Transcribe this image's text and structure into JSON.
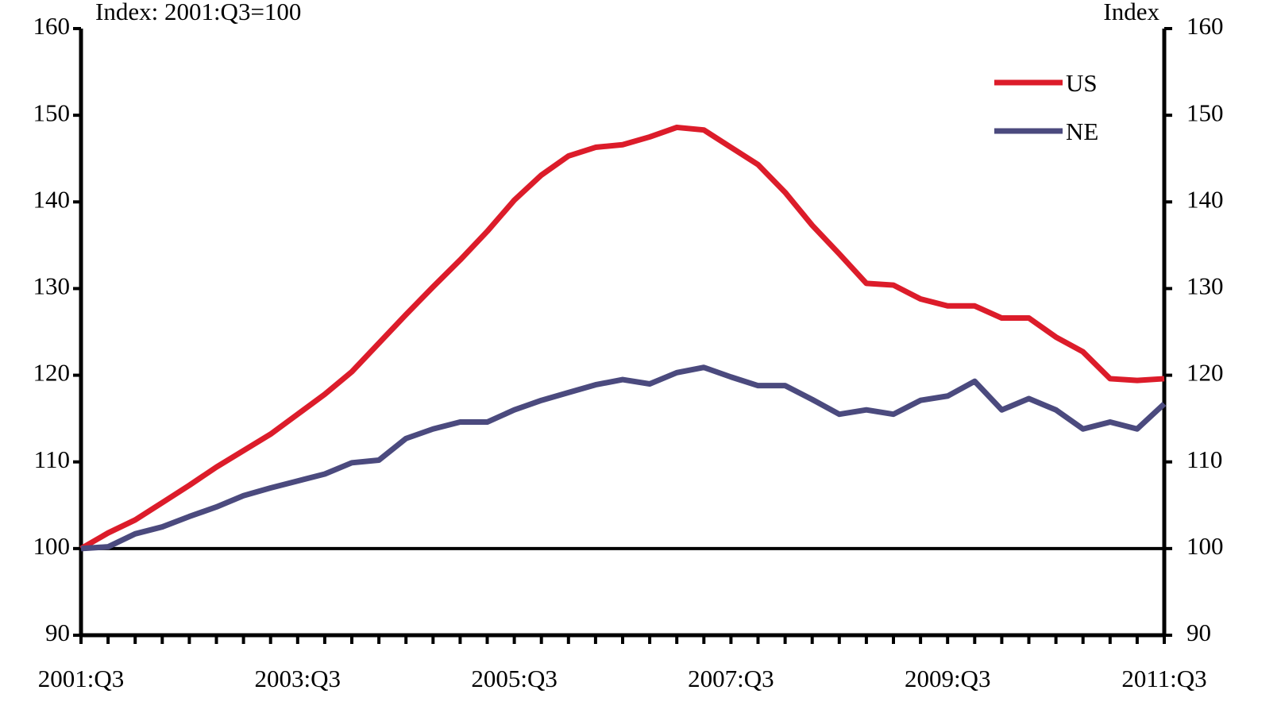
{
  "chart_data": {
    "type": "line",
    "y_label": "Index: 2001:Q3=100",
    "y2_label": "Index",
    "categories": [
      "2001:Q3",
      null,
      null,
      null,
      null,
      null,
      null,
      null,
      "2003:Q3",
      null,
      null,
      null,
      null,
      null,
      null,
      null,
      "2005:Q3",
      null,
      null,
      null,
      null,
      null,
      null,
      null,
      "2007:Q3",
      null,
      null,
      null,
      null,
      null,
      null,
      null,
      "2009:Q3",
      null,
      null,
      null,
      null,
      null,
      null,
      null,
      "2011:Q3"
    ],
    "series": [
      {
        "name": "US",
        "color": "#dc1c2a",
        "values": [
          100,
          101.8,
          103.3,
          105.3,
          107.3,
          109.4,
          111.3,
          113.2,
          115.5,
          117.8,
          120.4,
          123.7,
          127.0,
          130.2,
          133.3,
          136.6,
          140.2,
          143.1,
          145.3,
          146.3,
          146.6,
          147.5,
          148.6,
          148.3,
          146.3,
          144.3,
          141.1,
          137.3,
          134.0,
          130.6,
          130.4,
          128.8,
          128.0,
          128.0,
          126.6,
          126.6,
          124.4,
          122.7,
          119.6,
          119.4,
          119.6
        ]
      },
      {
        "name": "NE",
        "color": "#4b4a7e",
        "values": [
          100,
          100.2,
          101.7,
          102.5,
          103.7,
          104.8,
          106.1,
          107.0,
          107.8,
          108.6,
          109.9,
          110.2,
          112.7,
          113.8,
          114.6,
          114.6,
          116.0,
          117.1,
          118.0,
          118.9,
          119.5,
          119.0,
          120.3,
          120.9,
          119.8,
          118.8,
          118.8,
          117.2,
          115.5,
          116.0,
          115.5,
          117.1,
          117.6,
          119.3,
          116.0,
          117.3,
          116.0,
          113.8,
          114.6,
          113.8,
          116.7
        ]
      }
    ],
    "ylim": [
      90,
      160
    ],
    "yticks": [
      90,
      100,
      110,
      120,
      130,
      140,
      150,
      160
    ],
    "y2lim": [
      90,
      160
    ],
    "y2ticks": [
      90,
      100,
      110,
      120,
      130,
      140,
      150,
      160
    ],
    "reference_line": 100,
    "legend": "upper right",
    "grid": false
  }
}
